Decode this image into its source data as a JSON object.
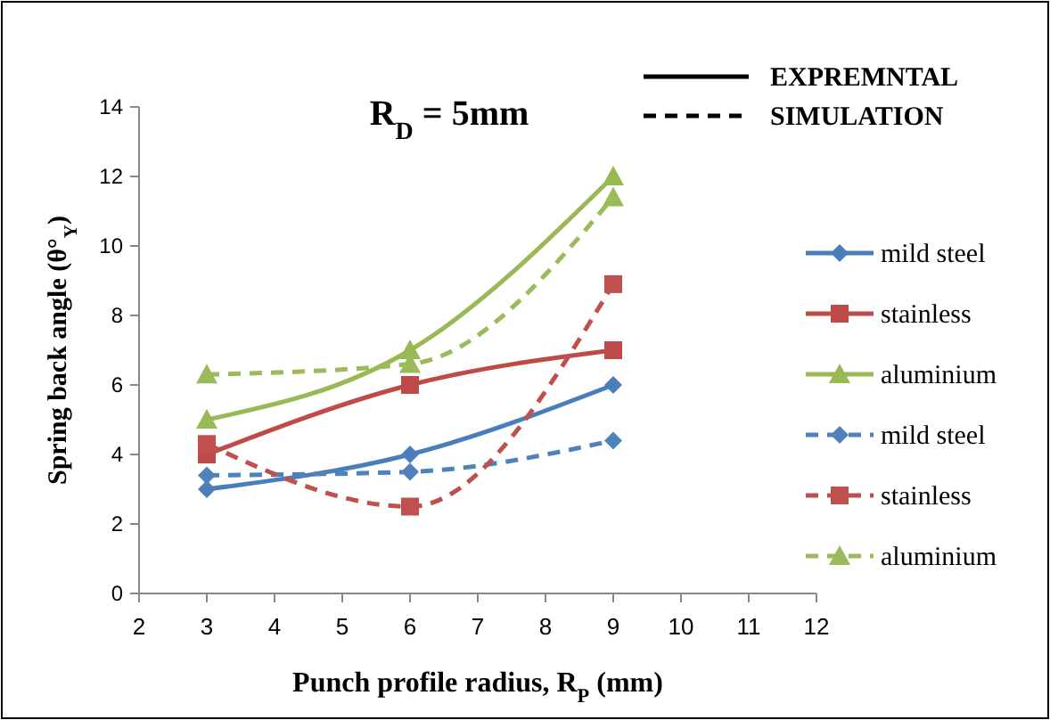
{
  "chart_data": {
    "type": "line",
    "title": "R$_{D}$ = 5mm",
    "xlabel": "Punch profile radius, R$_{P}$ (mm)",
    "ylabel": "Spring back angle (θ°$_{Y}$)",
    "annotations": [
      "EXPREMNTAL",
      "SIMULATION"
    ],
    "x": [
      3,
      6,
      9
    ],
    "xlim": [
      2,
      12
    ],
    "xticks": [
      2,
      3,
      4,
      5,
      6,
      7,
      8,
      9,
      10,
      11,
      12
    ],
    "ylim": [
      0,
      14
    ],
    "yticks": [
      0,
      2,
      4,
      6,
      8,
      10,
      12,
      14
    ],
    "grid": false,
    "legend": "right",
    "series": [
      {
        "name": "mild steel",
        "color": "#4a7ebb",
        "values": [
          3,
          4,
          6
        ],
        "marker": "diamond",
        "line_style": "solid"
      },
      {
        "name": "stainless",
        "color": "#be4b48",
        "values": [
          4,
          6,
          7
        ],
        "marker": "square",
        "line_style": "solid"
      },
      {
        "name": "aluminium",
        "color": "#98b954",
        "values": [
          5,
          7,
          12
        ],
        "marker": "triangle",
        "line_style": "solid"
      },
      {
        "name": "mild steel",
        "color": "#4f81bd",
        "values": [
          3.4,
          3.5,
          4.4
        ],
        "marker": "diamond",
        "line_style": "dashed"
      },
      {
        "name": "stainless",
        "color": "#c0504d",
        "values": [
          4.3,
          2.5,
          8.9
        ],
        "marker": "square",
        "line_style": "dashed"
      },
      {
        "name": "aluminium",
        "color": "#9bbb59",
        "values": [
          6.3,
          6.6,
          11.4
        ],
        "marker": "triangle",
        "line_style": "dashed"
      }
    ]
  }
}
